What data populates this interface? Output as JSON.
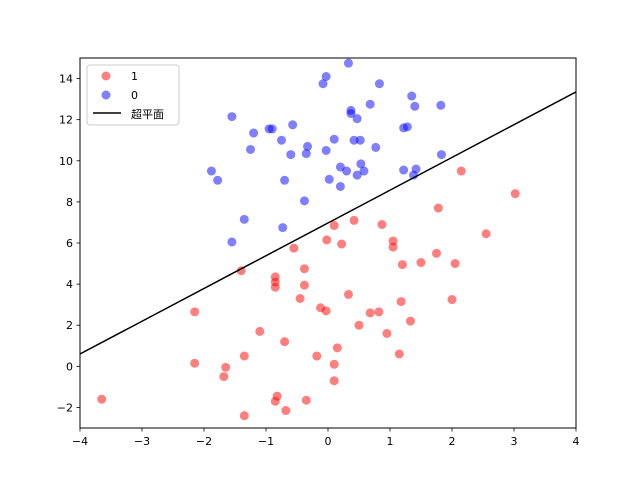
{
  "chart_data": {
    "type": "scatter",
    "title": "",
    "xlabel": "",
    "ylabel": "",
    "xlim": [
      -4,
      4
    ],
    "ylim": [
      -3,
      15
    ],
    "xticks": [
      -4,
      -3,
      -2,
      -1,
      0,
      1,
      2,
      3,
      4
    ],
    "yticks": [
      -2,
      0,
      2,
      4,
      6,
      8,
      10,
      12,
      14
    ],
    "grid": false,
    "legend_position": "top-left",
    "series": [
      {
        "name": "1",
        "type": "scatter",
        "color": "#ff0000",
        "alpha": 0.5,
        "points": [
          [
            -3.65,
            -1.6
          ],
          [
            -2.15,
            2.65
          ],
          [
            -2.15,
            0.15
          ],
          [
            -1.65,
            -0.05
          ],
          [
            -1.68,
            -0.5
          ],
          [
            -1.4,
            4.65
          ],
          [
            -1.35,
            0.5
          ],
          [
            -1.35,
            -2.4
          ],
          [
            -1.1,
            1.7
          ],
          [
            -0.85,
            4.35
          ],
          [
            -0.85,
            4.1
          ],
          [
            -0.85,
            3.85
          ],
          [
            -0.85,
            -1.7
          ],
          [
            -0.82,
            -1.45
          ],
          [
            -0.7,
            1.2
          ],
          [
            -0.68,
            -2.15
          ],
          [
            -0.55,
            5.75
          ],
          [
            -0.45,
            3.3
          ],
          [
            -0.38,
            4.75
          ],
          [
            -0.38,
            3.95
          ],
          [
            -0.35,
            -1.65
          ],
          [
            -0.18,
            0.5
          ],
          [
            -0.12,
            2.85
          ],
          [
            -0.02,
            6.15
          ],
          [
            -0.03,
            2.7
          ],
          [
            0.1,
            6.85
          ],
          [
            0.1,
            0.1
          ],
          [
            0.1,
            -0.7
          ],
          [
            0.15,
            0.9
          ],
          [
            0.22,
            5.95
          ],
          [
            0.33,
            3.5
          ],
          [
            0.42,
            7.1
          ],
          [
            0.5,
            2.0
          ],
          [
            0.68,
            2.6
          ],
          [
            0.82,
            2.65
          ],
          [
            0.87,
            6.9
          ],
          [
            0.95,
            1.6
          ],
          [
            1.05,
            6.1
          ],
          [
            1.05,
            5.8
          ],
          [
            1.15,
            0.6
          ],
          [
            1.18,
            3.15
          ],
          [
            1.2,
            4.95
          ],
          [
            1.33,
            2.2
          ],
          [
            1.5,
            5.05
          ],
          [
            1.75,
            5.5
          ],
          [
            1.78,
            7.7
          ],
          [
            2.0,
            3.25
          ],
          [
            2.05,
            5.0
          ],
          [
            2.15,
            9.5
          ],
          [
            2.55,
            6.45
          ],
          [
            3.02,
            8.4
          ]
        ]
      },
      {
        "name": "0",
        "type": "scatter",
        "color": "#0000ff",
        "alpha": 0.5,
        "points": [
          [
            -1.88,
            9.5
          ],
          [
            -1.78,
            9.05
          ],
          [
            -1.55,
            12.15
          ],
          [
            -1.55,
            6.05
          ],
          [
            -1.35,
            7.15
          ],
          [
            -1.25,
            10.55
          ],
          [
            -1.2,
            11.35
          ],
          [
            -0.95,
            11.55
          ],
          [
            -0.9,
            11.55
          ],
          [
            -0.75,
            11.0
          ],
          [
            -0.7,
            9.05
          ],
          [
            -0.73,
            6.75
          ],
          [
            -0.6,
            10.3
          ],
          [
            -0.57,
            11.75
          ],
          [
            -0.38,
            8.05
          ],
          [
            -0.35,
            10.35
          ],
          [
            -0.33,
            10.7
          ],
          [
            -0.08,
            13.75
          ],
          [
            -0.03,
            14.1
          ],
          [
            -0.03,
            10.5
          ],
          [
            0.02,
            9.1
          ],
          [
            0.1,
            11.05
          ],
          [
            0.2,
            9.7
          ],
          [
            0.2,
            8.75
          ],
          [
            0.3,
            9.5
          ],
          [
            0.33,
            14.75
          ],
          [
            0.37,
            12.3
          ],
          [
            0.37,
            12.45
          ],
          [
            0.42,
            11.0
          ],
          [
            0.47,
            12.05
          ],
          [
            0.47,
            9.3
          ],
          [
            0.52,
            11.0
          ],
          [
            0.53,
            9.85
          ],
          [
            0.58,
            9.5
          ],
          [
            0.68,
            12.75
          ],
          [
            0.77,
            10.65
          ],
          [
            0.83,
            13.75
          ],
          [
            1.22,
            11.6
          ],
          [
            1.22,
            9.55
          ],
          [
            1.28,
            11.65
          ],
          [
            1.35,
            13.15
          ],
          [
            1.38,
            9.3
          ],
          [
            1.4,
            12.65
          ],
          [
            1.42,
            9.6
          ],
          [
            1.82,
            12.7
          ],
          [
            1.83,
            10.3
          ]
        ]
      },
      {
        "name": "超平面",
        "type": "line",
        "color": "#000000",
        "x": [
          -4,
          4
        ],
        "y": [
          0.6,
          13.35
        ]
      }
    ]
  }
}
